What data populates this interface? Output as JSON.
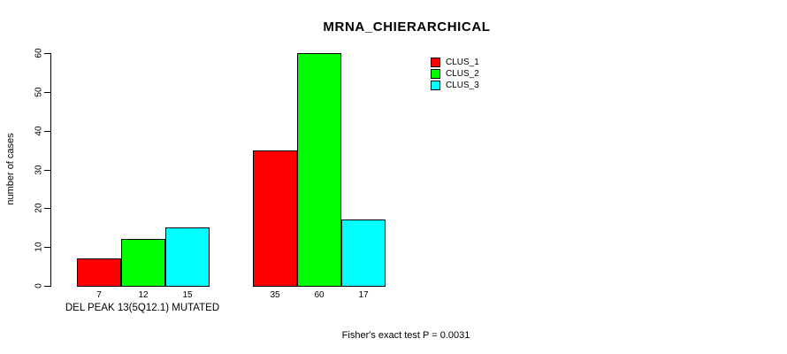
{
  "chart_data": {
    "type": "bar",
    "title": "MRNA_CHIERARCHICAL",
    "ylabel": "number of cases",
    "xlabel": "DEL PEAK 13(5Q12.1) MUTATED",
    "subtitle": "Fisher's exact test P = 0.0031",
    "ylim": [
      0,
      60
    ],
    "yticks": [
      0,
      10,
      20,
      30,
      40,
      50,
      60
    ],
    "grid": false,
    "legend_position": "top-right",
    "categories": [
      "DEL PEAK 13(5Q12.1) MUTATED",
      ""
    ],
    "series": [
      {
        "name": "CLUS_1",
        "color": "#ff0000",
        "values": [
          7,
          35
        ]
      },
      {
        "name": "CLUS_2",
        "color": "#00ff00",
        "values": [
          12,
          60
        ]
      },
      {
        "name": "CLUS_3",
        "color": "#00ffff",
        "values": [
          15,
          17
        ]
      }
    ],
    "bar_value_labels": [
      [
        7,
        12,
        15
      ],
      [
        35,
        60,
        17
      ]
    ],
    "colors": {
      "axis": "#000000",
      "text": "#000000",
      "bar_border": "#000000",
      "background": "#ffffff"
    }
  }
}
